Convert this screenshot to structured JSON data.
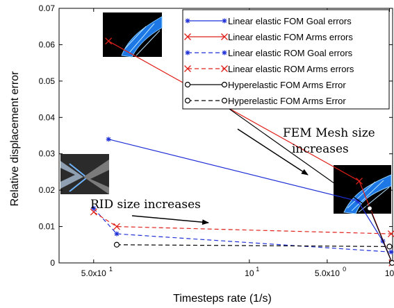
{
  "chart_data": {
    "type": "line",
    "title": "",
    "xlabel": "Timesteps rate (1/s)",
    "ylabel": "Relative displacement error",
    "ylim": [
      0,
      0.07
    ],
    "grid": false,
    "legend_position": "top-right",
    "y_ticks": [
      "0",
      "0.01",
      "0.02",
      "0.03",
      "0.04",
      "0.05",
      "0.06",
      "0.07"
    ],
    "x_ticks": [
      {
        "label": "5.0x10",
        "exp": "1",
        "at": 0.05
      },
      {
        "label": "10",
        "exp": "1",
        "at": 0.1
      },
      {
        "label": "5.0x10",
        "exp": "0",
        "at": 0.2
      },
      {
        "label": "10",
        "exp": "0",
        "at": 1.0
      }
    ],
    "x_scale": "reciprocal",
    "xlim": [
      0.045,
      1.25
    ],
    "series": [
      {
        "name": "Linear elastic FOM Goal errors",
        "color": "#1f2fd6",
        "dash": "",
        "marker": "star",
        "points": [
          [
            0.0525,
            0.034
          ],
          [
            0.33,
            0.017
          ],
          [
            0.7,
            0.006
          ],
          [
            1.2,
            0.0
          ]
        ]
      },
      {
        "name": "Linear elastic FOM Arms errors",
        "color": "#e0201a",
        "dash": "",
        "marker": "cross",
        "points": [
          [
            0.0525,
            0.061
          ],
          [
            0.34,
            0.0225
          ],
          [
            1.2,
            0.0
          ]
        ]
      },
      {
        "name": "Linear elastic ROM Goal errors",
        "color": "#1f2fd6",
        "dash": "6,4",
        "marker": "star",
        "points": [
          [
            0.05,
            0.015
          ],
          [
            0.054,
            0.008
          ],
          [
            1.12,
            0.003
          ]
        ]
      },
      {
        "name": "Linear elastic ROM Arms errors",
        "color": "#e0201a",
        "dash": "6,4",
        "marker": "cross",
        "points": [
          [
            0.05,
            0.014
          ],
          [
            0.054,
            0.01
          ],
          [
            1.12,
            0.008
          ]
        ]
      },
      {
        "name": "Hyperelastic FOM Arms Error",
        "color": "#000000",
        "dash": "",
        "marker": "circle",
        "points": [
          [
            0.076,
            0.048
          ],
          [
            0.44,
            0.015
          ],
          [
            1.2,
            0.0
          ]
        ]
      },
      {
        "name": "Hyperelastic FOM Arms Error",
        "color": "#000000",
        "dash": "6,4",
        "marker": "circle",
        "points": [
          [
            0.054,
            0.005
          ],
          [
            1.0,
            0.0045
          ]
        ]
      }
    ],
    "annotations": [
      {
        "text": "FEM Mesh size"
      },
      {
        "text": "increases"
      },
      {
        "text": "RID size increases"
      }
    ]
  }
}
